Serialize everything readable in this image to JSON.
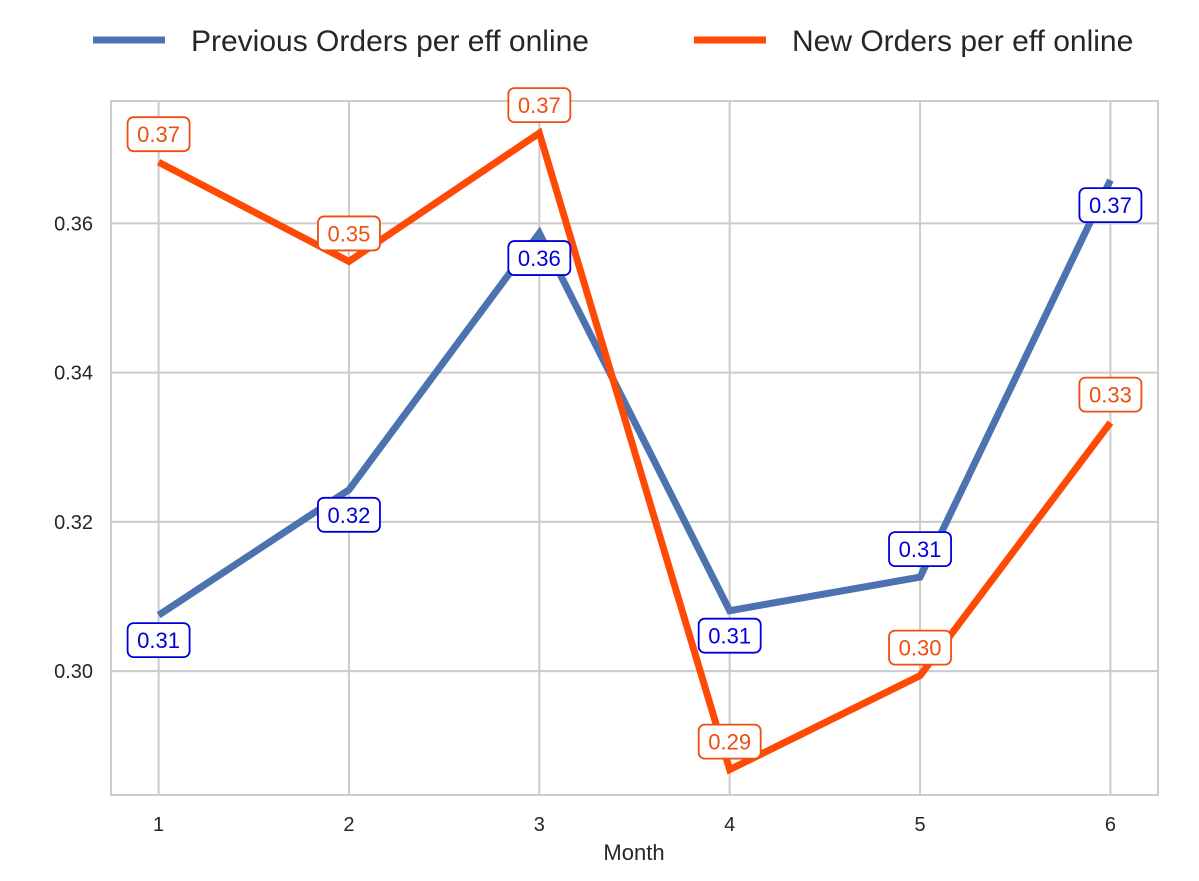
{
  "chart_data": {
    "type": "line",
    "title": "",
    "xlabel": "Month",
    "ylabel": "",
    "x": [
      1,
      2,
      3,
      4,
      5,
      6
    ],
    "xlim": [
      0.75,
      6.25
    ],
    "ylim": [
      0.2834,
      0.3764
    ],
    "yticks": [
      0.3,
      0.32,
      0.34,
      0.36
    ],
    "ytick_labels": [
      "0.30",
      "0.32",
      "0.34",
      "0.36"
    ],
    "xtick_labels": [
      "1",
      "2",
      "3",
      "4",
      "5",
      "6"
    ],
    "grid": true,
    "legend_position": "top",
    "series": [
      {
        "name": "Previous Orders per eff online",
        "color": "#4c72b0",
        "label_color": "#0000dd",
        "values": [
          0.3075,
          0.3243,
          0.3587,
          0.3081,
          0.3126,
          0.3658
        ],
        "labels": [
          "0.31",
          "0.32",
          "0.36",
          "0.31",
          "0.31",
          "0.37"
        ],
        "label_side": [
          "below",
          "below",
          "below",
          "below",
          "above",
          "below"
        ]
      },
      {
        "name": "New Orders per eff online",
        "color": "#ff4a05",
        "label_color": "#ee4e10",
        "values": [
          0.3682,
          0.3549,
          0.3721,
          0.2868,
          0.2994,
          0.3333
        ],
        "labels": [
          "0.37",
          "0.35",
          "0.37",
          "0.29",
          "0.30",
          "0.33"
        ],
        "label_side": [
          "above",
          "above",
          "above",
          "above",
          "above",
          "above"
        ]
      }
    ]
  }
}
